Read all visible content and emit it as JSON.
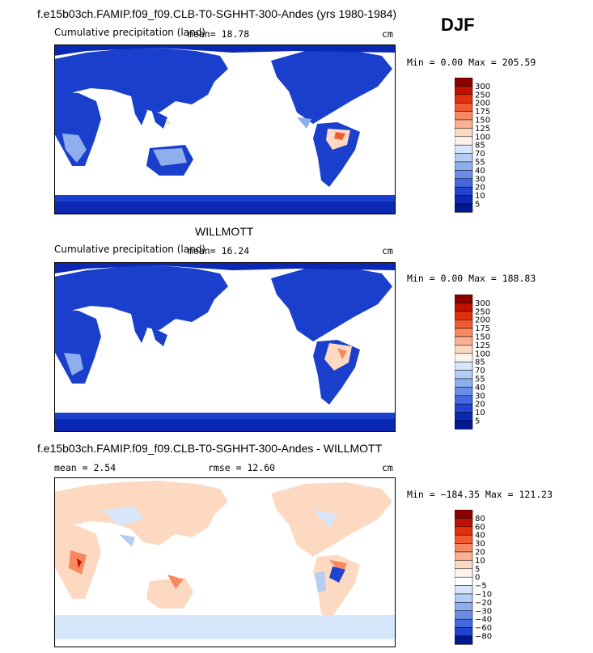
{
  "season": "DJF",
  "chart_data": [
    {
      "type": "heatmap",
      "title": "f.e15b03ch.FAMIP.f09_f09.CLB-T0-SGHHT-300-Andes (yrs 1980-1984)",
      "subtitle_left": "Cumulative precipitation (land)",
      "mean_text": "mean=   18.78",
      "units": "cm",
      "minmax_text": "Min =    0.00 Max = 205.59",
      "colorbar": {
        "levels": [
          "300",
          "250",
          "200",
          "175",
          "150",
          "125",
          "100",
          "85",
          "70",
          "55",
          "40",
          "30",
          "20",
          "10",
          "5"
        ],
        "colors": [
          "#8b0000",
          "#c01000",
          "#e03010",
          "#f25a30",
          "#f88860",
          "#fbb090",
          "#fdd9c2",
          "#fef3ec",
          "#d6e6fb",
          "#b3cdf5",
          "#8faeee",
          "#6a8de8",
          "#4368e0",
          "#2144d0",
          "#0a28b4",
          "#001890"
        ]
      }
    },
    {
      "type": "heatmap",
      "title": "WILLMOTT",
      "subtitle_left": "Cumulative precipitation (land)",
      "mean_text": "mean=   16.24",
      "units": "cm",
      "minmax_text": "Min =    0.00 Max = 188.83",
      "colorbar": {
        "levels": [
          "300",
          "250",
          "200",
          "175",
          "150",
          "125",
          "100",
          "85",
          "70",
          "55",
          "40",
          "30",
          "20",
          "10",
          "5"
        ],
        "colors": [
          "#8b0000",
          "#c01000",
          "#e03010",
          "#f25a30",
          "#f88860",
          "#fbb090",
          "#fdd9c2",
          "#fef3ec",
          "#d6e6fb",
          "#b3cdf5",
          "#8faeee",
          "#6a8de8",
          "#4368e0",
          "#2144d0",
          "#0a28b4",
          "#001890"
        ]
      }
    },
    {
      "type": "heatmap",
      "title": "f.e15b03ch.FAMIP.f09_f09.CLB-T0-SGHHT-300-Andes - WILLMOTT",
      "mean_text": "mean =    2.54",
      "rmse_text": "rmse =   12.60",
      "units": "cm",
      "minmax_text": "Min = −184.35 Max = 121.23",
      "colorbar": {
        "levels": [
          "80",
          "60",
          "40",
          "30",
          "20",
          "10",
          "5",
          "0",
          "−5",
          "−10",
          "−20",
          "−30",
          "−40",
          "−60",
          "−80"
        ],
        "colors": [
          "#8b0000",
          "#c01000",
          "#e03010",
          "#f25a30",
          "#f88860",
          "#fbb090",
          "#fdd9c2",
          "#fef3ec",
          "#ffffff",
          "#d6e6fb",
          "#b3cdf5",
          "#8faeee",
          "#6a8de8",
          "#4368e0",
          "#2144d0",
          "#001890"
        ]
      }
    }
  ]
}
